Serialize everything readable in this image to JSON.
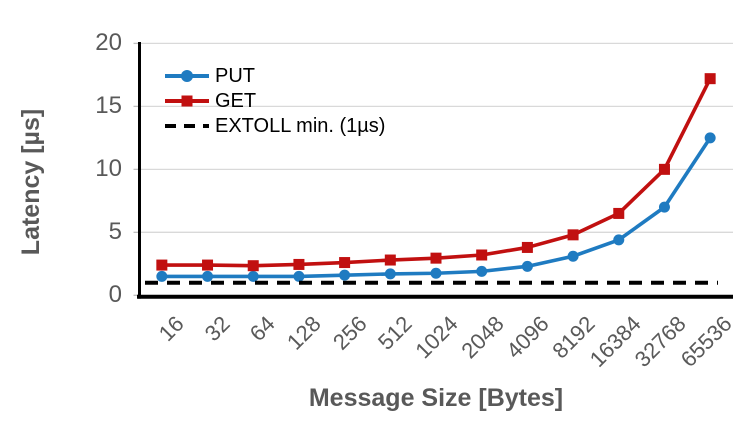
{
  "chart_data": {
    "type": "line",
    "title": "",
    "xlabel": "Message Size [Bytes]",
    "ylabel": "Latency [µs]",
    "categories": [
      "16",
      "32",
      "64",
      "128",
      "256",
      "512",
      "1024",
      "2048",
      "4096",
      "8192",
      "16384",
      "32768",
      "65536"
    ],
    "ylim": [
      0,
      20
    ],
    "y_ticks": [
      0,
      5,
      10,
      15,
      20
    ],
    "grid": "horizontal",
    "legend_position": "top-left inside plot area",
    "series": [
      {
        "name": "PUT",
        "color": "#1f7bc1",
        "marker": "circle",
        "line_style": "solid",
        "values": [
          1.5,
          1.5,
          1.5,
          1.5,
          1.6,
          1.7,
          1.75,
          1.9,
          2.3,
          3.1,
          4.4,
          7.0,
          12.5
        ]
      },
      {
        "name": "GET",
        "color": "#c11010",
        "marker": "square",
        "line_style": "solid",
        "values": [
          2.4,
          2.4,
          2.35,
          2.45,
          2.6,
          2.8,
          2.95,
          3.2,
          3.8,
          4.8,
          6.5,
          10.0,
          17.2
        ]
      },
      {
        "name": "EXTOLL min. (1µs)",
        "color": "#000000",
        "marker": "none",
        "line_style": "dashed",
        "constant": 1.0
      }
    ],
    "text_color": "#595959",
    "gridline_color": "#d9d9d9",
    "axis_color": "#000000"
  }
}
